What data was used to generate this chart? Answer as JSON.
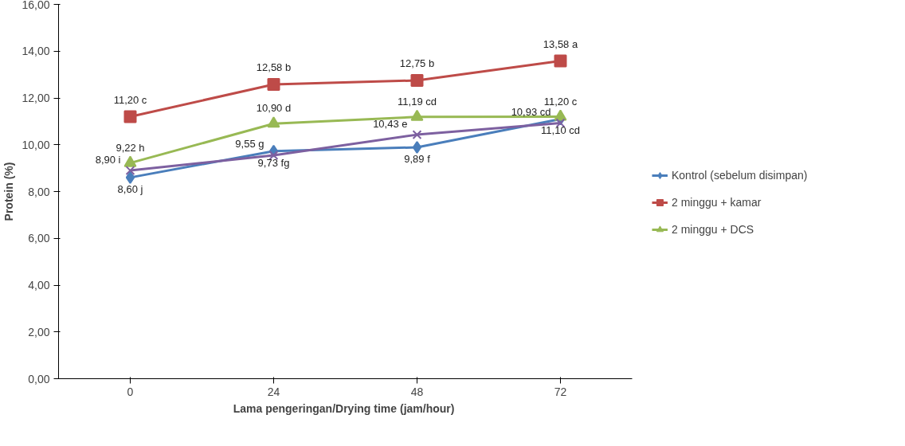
{
  "chart_data": {
    "type": "line",
    "xlabel": "Lama pengeringan/Drying time  (jam/hour)",
    "ylabel": "Protein (%)",
    "categories": [
      "0",
      "24",
      "48",
      "72"
    ],
    "ylim": [
      0,
      16
    ],
    "yticks": [
      {
        "value": 0,
        "label": "0,00"
      },
      {
        "value": 2,
        "label": "2,00"
      },
      {
        "value": 4,
        "label": "4,00"
      },
      {
        "value": 6,
        "label": "6,00"
      },
      {
        "value": 8,
        "label": "8,00"
      },
      {
        "value": 10,
        "label": "10,00"
      },
      {
        "value": 12,
        "label": "12,00"
      },
      {
        "value": 14,
        "label": "14,00"
      },
      {
        "value": 16,
        "label": "16,00"
      }
    ],
    "grid": false,
    "legend": "right",
    "series": [
      {
        "name": "Kontrol (sebelum disimpan)",
        "color": "#4a7ebb",
        "marker": "diamond",
        "values": [
          8.6,
          9.73,
          9.89,
          11.1
        ],
        "value_labels": [
          "8,60 j",
          "9,73 fg",
          "9,89 f",
          "11,10 cd"
        ]
      },
      {
        "name": "2 minggu + kamar",
        "color": "#be4b48",
        "marker": "square",
        "values": [
          11.2,
          12.58,
          12.75,
          13.58
        ],
        "value_labels": [
          "11,20 c",
          "12,58 b",
          "12,75 b",
          "13,58 a"
        ]
      },
      {
        "name": "2 minggu + DCS",
        "color": "#98b954",
        "marker": "triangle",
        "values": [
          9.22,
          10.9,
          11.19,
          11.2
        ],
        "value_labels": [
          "9,22 h",
          "10,90 d",
          "11,19 cd",
          "11,20 c"
        ]
      },
      {
        "color": "#7d60a0",
        "marker": "cross",
        "values": [
          8.9,
          9.55,
          10.43,
          10.93
        ],
        "value_labels": [
          "8,90 i",
          "9,55 g",
          "10,43 e",
          "10,93 cd"
        ]
      }
    ]
  }
}
